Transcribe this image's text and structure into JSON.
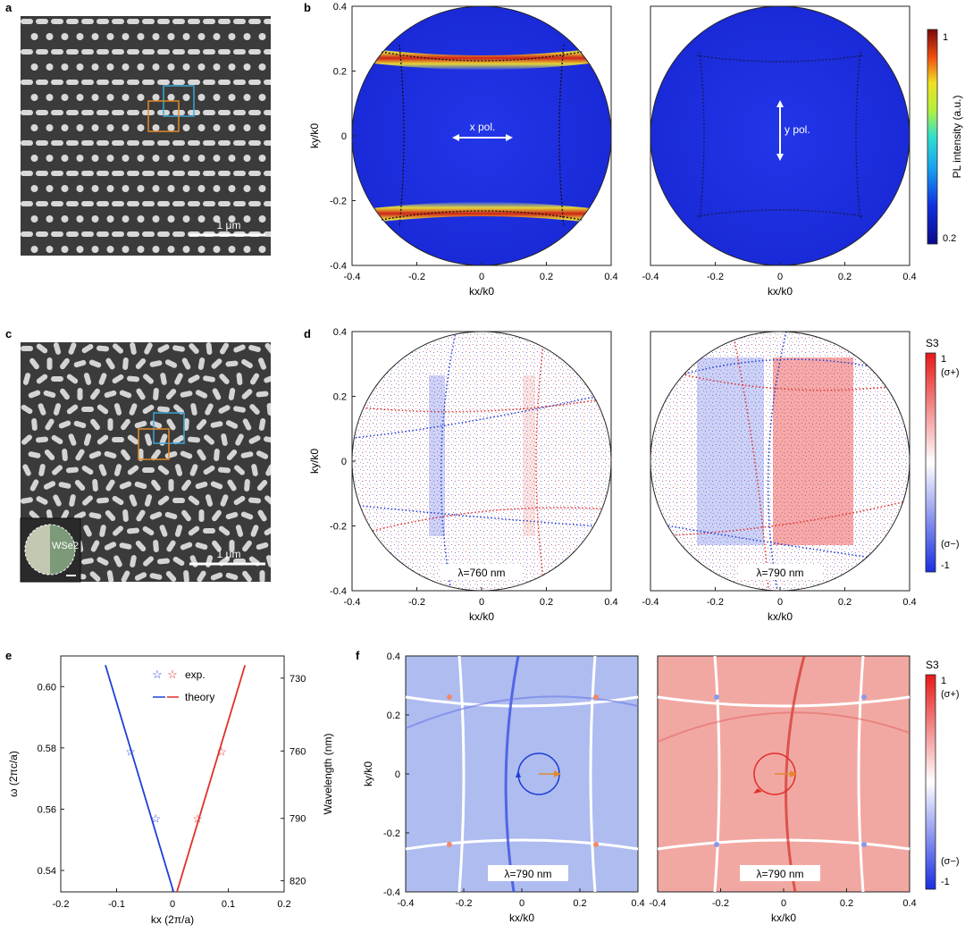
{
  "panels": {
    "a": {
      "label": "a",
      "scalebar": "1 μm"
    },
    "b": {
      "label": "b",
      "left_annotation": "x pol.",
      "right_annotation": "y pol.",
      "xlabel": "kx/k0",
      "ylabel": "ky/k0",
      "colorbar_label": "PL intensity (a.u.)",
      "colorbar_max": "1",
      "colorbar_min": "0.2"
    },
    "c": {
      "label": "c",
      "scalebar": "1 μm",
      "inset_label": "WSe2"
    },
    "d": {
      "label": "d",
      "left_annotation": "λ=760 nm",
      "right_annotation": "λ=790 nm",
      "xlabel": "kx/k0",
      "ylabel": "ky/k0",
      "colorbar_title": "S3",
      "colorbar_max": "1",
      "colorbar_max_sub": "(σ+)",
      "colorbar_min": "-1",
      "colorbar_min_sub": "(σ−)"
    },
    "e": {
      "label": "e",
      "legend_exp": "exp.",
      "legend_theory": "theory",
      "xlabel": "kx (2π/a)",
      "ylabel": "ω (2πc/a)",
      "y2label": "Wavelength (nm)"
    },
    "f": {
      "label": "f",
      "left_annotation": "λ=790 nm",
      "right_annotation": "λ=790 nm",
      "xlabel": "kx/k0",
      "ylabel": "ky/k0",
      "colorbar_title": "S3",
      "colorbar_max": "1",
      "colorbar_max_sub": "(σ+)",
      "colorbar_min": "-1",
      "colorbar_min_sub": "(σ−)"
    }
  },
  "axes_ticks": {
    "k": [
      "-0.4",
      "-0.2",
      "0",
      "0.2",
      "0.4"
    ],
    "ky": [
      "0.4",
      "0.2",
      "0",
      "-0.2",
      "-0.4"
    ]
  },
  "colors": {
    "blue": "#1f3fd6",
    "red": "#e0302a",
    "orange": "#e08a2a",
    "cyan": "#3aa6d8",
    "sem_bg": "#3b3b3b"
  },
  "chart_data": {
    "type": "scatter",
    "title": "",
    "xlabel": "kx (2π/a)",
    "ylabel": "ω (2πc/a)",
    "y2label": "Wavelength (nm)",
    "xlim": [
      -0.2,
      0.2
    ],
    "ylim": [
      0.533,
      0.61
    ],
    "xticks": [
      "-0.2",
      "-0.1",
      "0",
      "0.1",
      "0.2"
    ],
    "yticks": [
      "0.54",
      "0.56",
      "0.58",
      "0.60"
    ],
    "y2ticks": [
      "730",
      "760",
      "790",
      "820"
    ],
    "series": [
      {
        "name": "exp.",
        "color": "#1f3fd6",
        "marker": "star",
        "x": [
          -0.075,
          -0.03
        ],
        "y": [
          0.579,
          0.557
        ]
      },
      {
        "name": "exp.",
        "color": "#e0302a",
        "marker": "star",
        "x": [
          0.045,
          0.088
        ],
        "y": [
          0.557,
          0.579
        ]
      },
      {
        "name": "theory",
        "color": "#1f3fd6",
        "line": true,
        "x": [
          -0.12,
          0.002
        ],
        "y": [
          0.607,
          0.533
        ]
      },
      {
        "name": "theory",
        "color": "#e0302a",
        "line": true,
        "x": [
          0.008,
          0.13
        ],
        "y": [
          0.533,
          0.607
        ]
      }
    ]
  }
}
